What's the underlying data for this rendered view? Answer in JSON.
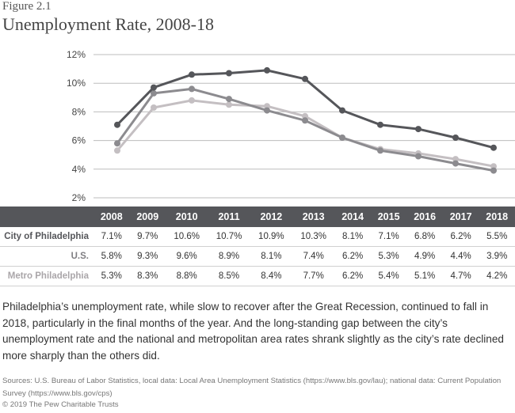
{
  "figure_label": "Figure 2.1",
  "title": "Unemployment Rate, 2008-18",
  "chart_data": {
    "type": "line",
    "title": "Unemployment Rate, 2008-18",
    "x": [
      "2008",
      "2009",
      "2010",
      "2011",
      "2012",
      "2013",
      "2014",
      "2015",
      "2016",
      "2017",
      "2018"
    ],
    "ylim": [
      2,
      12
    ],
    "yticks": [
      2,
      4,
      6,
      8,
      10,
      12
    ],
    "ytick_labels": [
      "2%",
      "4%",
      "6%",
      "8%",
      "10%",
      "12%"
    ],
    "grid": true,
    "series": [
      {
        "name": "City of Philadelphia",
        "color": "#55565a",
        "values": [
          7.1,
          9.7,
          10.6,
          10.7,
          10.9,
          10.3,
          8.1,
          7.1,
          6.8,
          6.2,
          5.5
        ]
      },
      {
        "name": "U.S.",
        "color": "#8c8b8f",
        "values": [
          5.8,
          9.3,
          9.6,
          8.9,
          8.1,
          7.4,
          6.2,
          5.3,
          4.9,
          4.4,
          3.9
        ]
      },
      {
        "name": "Metro Philadelphia",
        "color": "#c4bfc2",
        "values": [
          5.3,
          8.3,
          8.8,
          8.5,
          8.4,
          7.7,
          6.2,
          5.4,
          5.1,
          4.7,
          4.2
        ]
      }
    ]
  },
  "table": {
    "headers": [
      "2008",
      "2009",
      "2010",
      "2011",
      "2012",
      "2013",
      "2014",
      "2015",
      "2016",
      "2017",
      "2018"
    ],
    "rows": [
      {
        "label": "City of Philadelphia",
        "label_color": "#55565a",
        "cells": [
          "7.1%",
          "9.7%",
          "10.6%",
          "10.7%",
          "10.9%",
          "10.3%",
          "8.1%",
          "7.1%",
          "6.8%",
          "6.2%",
          "5.5%"
        ]
      },
      {
        "label": "U.S.",
        "label_color": "#7f7e82",
        "cells": [
          "5.8%",
          "9.3%",
          "9.6%",
          "8.9%",
          "8.1%",
          "7.4%",
          "6.2%",
          "5.3%",
          "4.9%",
          "4.4%",
          "3.9%"
        ]
      },
      {
        "label": "Metro Philadelphia",
        "label_color": "#aaa6a9",
        "cells": [
          "5.3%",
          "8.3%",
          "8.8%",
          "8.5%",
          "8.4%",
          "7.7%",
          "6.2%",
          "5.4%",
          "5.1%",
          "4.7%",
          "4.2%"
        ]
      }
    ]
  },
  "caption": "Philadelphia’s unemployment rate, while slow to recover after the Great Recession, continued to fall in 2018, particularly in the final months of the year. And the long-standing gap between the city’s unemployment rate and the national and metropolitan area rates shrank slightly as the city’s rate declined more sharply than the others did.",
  "sources": "Sources: U.S. Bureau of Labor Statistics, local data: Local Area Unemployment Statistics (https://www.bls.gov/lau); national data: Current Population Survey (https://www.bls.gov/cps)",
  "copyright": "© 2019 The Pew Charitable Trusts"
}
